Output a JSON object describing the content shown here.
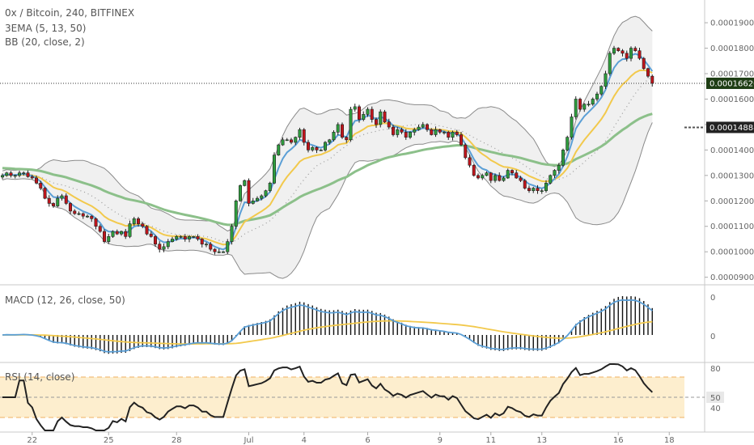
{
  "header": {
    "title": "0x / Bitcoin, 240, BITFINEX",
    "ema_label": "3EMA (5, 13, 50)",
    "bb_label": "BB (20, close, 2)",
    "macd_label": "MACD (12, 26, close, 50)",
    "rsi_label": "RSI (14, close)"
  },
  "colors": {
    "up": "#2e9e3e",
    "down": "#c0141b",
    "ema5": "#5b9fd6",
    "ema13": "#f2c94c",
    "ema50": "#8cc08a",
    "bb_fill": "#f0f0f0",
    "bb_line": "#8a8a8a",
    "rsi_band": "#fdebc5",
    "rsi_band_line": "#f0b060",
    "price_tag": "#1e3d14"
  },
  "chart_data": [
    {
      "type": "candlestick",
      "panel": "price",
      "symbol": "0x / Bitcoin",
      "timeframe": "240",
      "exchange": "BITFINEX",
      "x_axis": {
        "labels": [
          "22",
          "25",
          "28",
          "Jul",
          "4",
          "6",
          "9",
          "11",
          "13",
          "16",
          "18"
        ],
        "label_bar_index": [
          7,
          25,
          41,
          58,
          71,
          86,
          103,
          115,
          127,
          145,
          157
        ]
      },
      "y_axis": {
        "ticks": [
          "0.00009000",
          "0.00010000",
          "0.00011000",
          "0.00012000",
          "0.00013000",
          "0.00014000",
          "0.00015000",
          "0.00016000",
          "0.00017000",
          "0.00018000",
          "0.00019000"
        ],
        "range": [
          8.83e-05,
          0.0001983
        ]
      },
      "closes": [
        0.00013,
        0.000131,
        0.00013,
        0.00013,
        0.000131,
        0.000131,
        0.0001295,
        0.000129,
        0.000127,
        0.000125,
        0.000121,
        0.000119,
        0.000118,
        0.000121,
        0.000122,
        0.000119,
        0.000116,
        0.000115,
        0.000115,
        0.000114,
        0.000114,
        0.000113,
        0.00011,
        0.000108,
        0.000104,
        0.000106,
        0.000108,
        0.000107,
        0.000108,
        0.000106,
        0.000111,
        0.000113,
        0.000111,
        0.00011,
        0.000107,
        0.000106,
        0.000103,
        0.000101,
        0.000102,
        0.000104,
        0.000105,
        0.000106,
        0.000106,
        0.000105,
        0.000106,
        0.000106,
        0.000105,
        0.000103,
        0.000103,
        0.000101,
        0.0001,
        0.0001,
        0.0001,
        0.000104,
        0.00011,
        0.00012,
        0.000126,
        0.000128,
        0.000119,
        0.00012,
        0.000121,
        0.000122,
        0.000124,
        0.000127,
        0.000138,
        0.000142,
        0.000144,
        0.000144,
        0.000143,
        0.000145,
        0.000148,
        0.000143,
        0.00014,
        0.000141,
        0.00014,
        0.00014,
        0.000143,
        0.000144,
        0.000147,
        0.00015,
        0.000145,
        0.000144,
        0.000156,
        0.000157,
        0.000152,
        0.000154,
        0.000156,
        0.000152,
        0.00015,
        0.000155,
        0.000151,
        0.000149,
        0.000146,
        0.000148,
        0.000147,
        0.000145,
        0.000147,
        0.000148,
        0.000149,
        0.00015,
        0.000148,
        0.000146,
        0.000148,
        0.000147,
        0.000147,
        0.000145,
        0.000147,
        0.000146,
        0.000142,
        0.000137,
        0.000134,
        0.00013,
        0.000129,
        0.00013,
        0.000131,
        0.000128,
        0.00013,
        0.000128,
        0.000129,
        0.000132,
        0.000131,
        0.000129,
        0.000128,
        0.000125,
        0.000124,
        0.000125,
        0.000124,
        0.000124,
        0.000127,
        0.00013,
        0.000132,
        0.000134,
        0.00014,
        0.000145,
        0.000153,
        0.00016,
        0.000156,
        0.000158,
        0.000158,
        0.00016,
        0.000162,
        0.000165,
        0.00017,
        0.000178,
        0.00018,
        0.000179,
        0.000178,
        0.000176,
        0.00018,
        0.000179,
        0.000176,
        0.000172,
        0.000169,
        0.0001662
      ],
      "last_price_label": "0.00016620",
      "level_label": "0.00014888",
      "series": [
        {
          "name": "3EMA (5, 13, 50)"
        },
        {
          "name": "BB (20, close, 2)"
        }
      ]
    },
    {
      "type": "bar+line",
      "panel": "macd",
      "title": "MACD (12, 26, close, 50)",
      "y_ticks": [
        "0",
        "0"
      ]
    },
    {
      "type": "line",
      "panel": "rsi",
      "title": "RSI (14, close)",
      "y_ticks": [
        "80",
        "50",
        "40"
      ],
      "bands": [
        70,
        30
      ],
      "midline": 50
    }
  ]
}
